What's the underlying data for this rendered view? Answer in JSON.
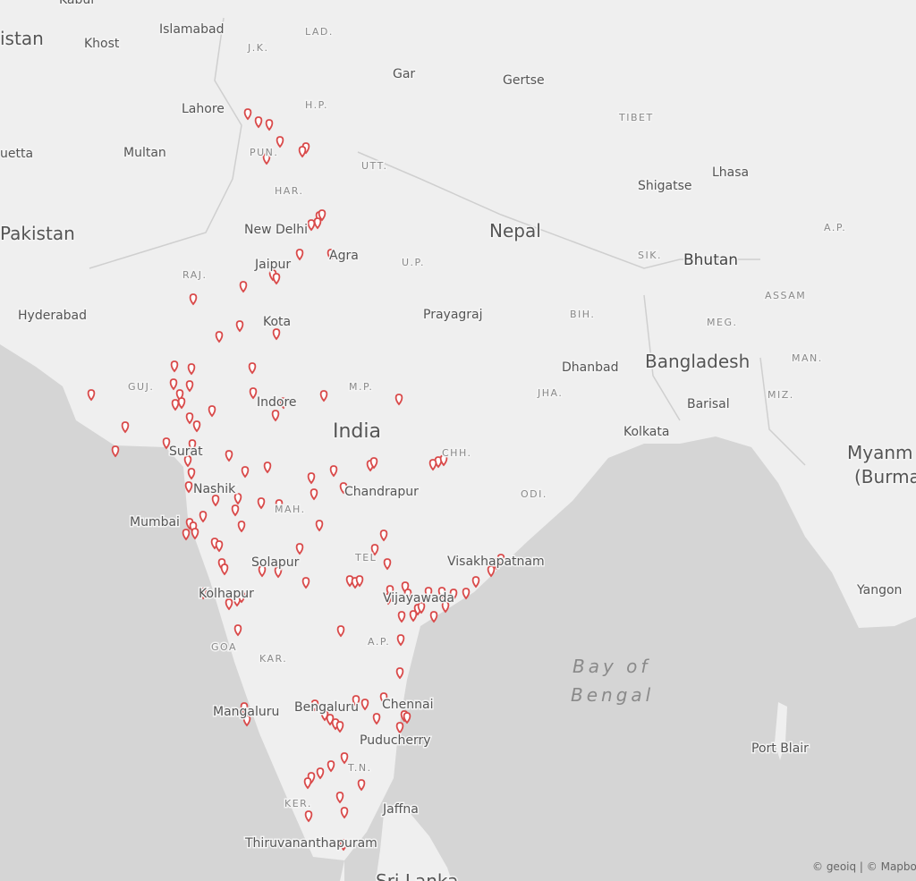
{
  "map": {
    "labels": [
      "Kabul",
      "istan",
      "Khost",
      "Islamabad",
      "J.K.",
      "LAD.",
      "Gar",
      "Gertse",
      "Lahore",
      "H.P.",
      "TIBET",
      "uetta",
      "Multan",
      "PUN.",
      "UTT.",
      "HAR.",
      "Shigatse",
      "Lhasa",
      "Pakistan",
      "New Delhi",
      "Nepal",
      "A.P.",
      "Agra",
      "U.P.",
      "SIK.",
      "Bhutan",
      "Jaipur",
      "RAJ.",
      "ASSAM",
      "Hyderabad",
      "Prayagraj",
      "BIH.",
      "Kota",
      "MEG.",
      "Bangladesh",
      "Dhanbad",
      "MAN.",
      "GUJ.",
      "M.P.",
      "JHA.",
      "MIZ.",
      "Indore",
      "Barisal",
      "India",
      "Kolkata",
      "CHH.",
      "Surat",
      "Myanm",
      "(Burma",
      "Nashik",
      "Chandrapur",
      "ODI.",
      "Mumbai",
      "MAH.",
      "TEL",
      "Visakhapatnam",
      "Solapur",
      "Kolhapur",
      "Vijayawada",
      "Yangon",
      "GOA",
      "A.P.",
      "KAR.",
      "Bay of",
      "Bengal",
      "Mangaluru",
      "Bengaluru",
      "Chennai",
      "Puducherry",
      "Port Blair",
      "T.N.",
      "KER.",
      "Jaffna",
      "Thiruvananthapuram",
      "Sri Lanka"
    ],
    "attribution": "© geoiq | © Mapbo"
  }
}
